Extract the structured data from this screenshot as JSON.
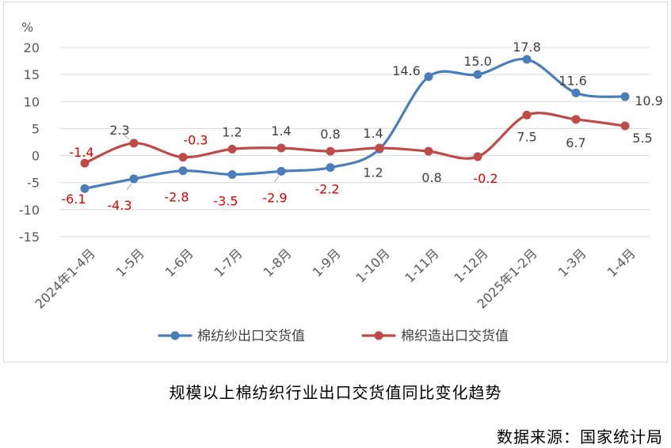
{
  "chart_data": {
    "type": "line",
    "ylabel": "%",
    "ylim": [
      -15,
      20
    ],
    "yticks": [
      20,
      15,
      10,
      5,
      0,
      -5,
      -10,
      -15
    ],
    "categories": [
      "2024年1-4月",
      "1-5月",
      "1-6月",
      "1-7月",
      "1-8月",
      "1-9月",
      "1-10月",
      "1-11月",
      "1-12月",
      "2025年1-2月",
      "1-3月",
      "1-4月"
    ],
    "series": [
      {
        "name": "棉纺纱出口交货值",
        "color": "#4a7ebb",
        "values": [
          -6.1,
          -4.3,
          -2.8,
          -3.5,
          -2.9,
          -2.2,
          1.2,
          14.6,
          15.0,
          17.8,
          11.6,
          10.9
        ],
        "labels": [
          "-6.1",
          "-4.3",
          "-2.8",
          "-3.5",
          "-2.9",
          "-2.2",
          "1.2",
          "14.6",
          "15.0",
          "17.8",
          "11.6",
          "10.9"
        ]
      },
      {
        "name": "棉织造出口交货值",
        "color": "#be4b48",
        "values": [
          -1.4,
          2.3,
          -0.3,
          1.2,
          1.4,
          0.8,
          1.4,
          0.8,
          -0.2,
          7.5,
          6.7,
          5.5
        ],
        "labels": [
          "-1.4",
          "2.3",
          "-0.3",
          "1.2",
          "1.4",
          "0.8",
          "1.4",
          "0.8",
          "-0.2",
          "7.5",
          "6.7",
          "5.5"
        ]
      }
    ],
    "legend": "bottom",
    "grid": true
  },
  "caption": "规模以上棉纺织行业出口交货值同比变化趋势",
  "source": "数据来源：国家统计局"
}
